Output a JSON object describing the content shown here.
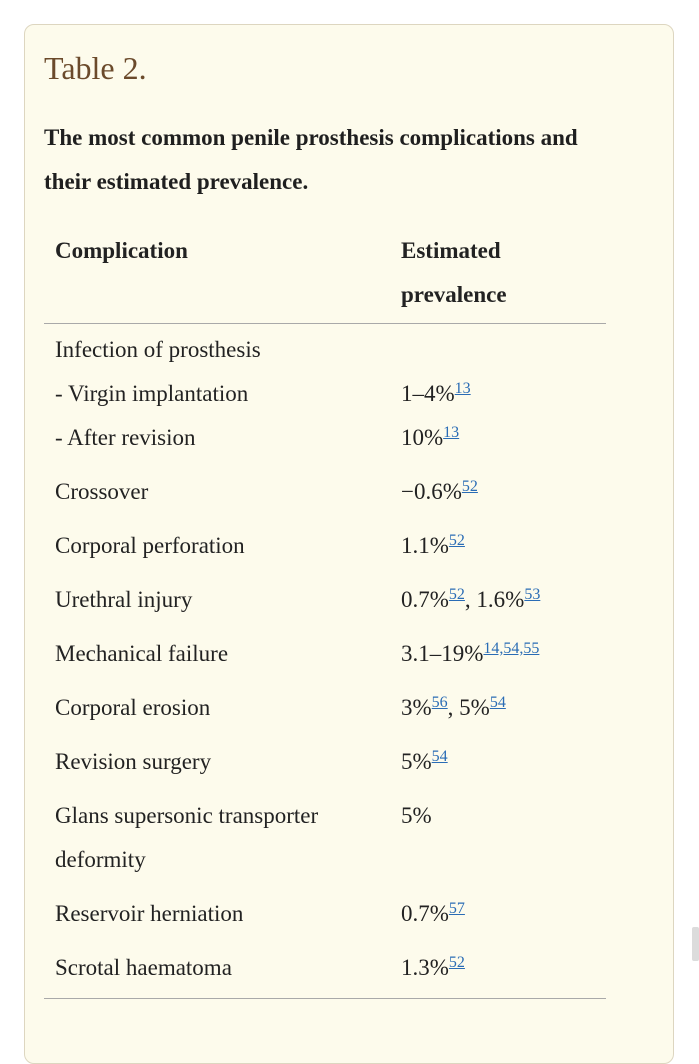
{
  "table": {
    "label": "Table 2.",
    "caption": "The most common penile prosthesis complications and their estimated prevalence.",
    "headers": {
      "complication": "Complication",
      "prevalence": "Estimated prevalence"
    },
    "infection": {
      "title": "Infection of prosthesis",
      "sub_virgin": "- Virgin implantation",
      "sub_revision": "- After revision",
      "virgin_value": "1–4%",
      "virgin_ref": "13",
      "revision_value": "10%",
      "revision_ref": "13"
    },
    "rows": [
      {
        "label": "Crossover",
        "value": "−0.6%",
        "ref": "52"
      },
      {
        "label": "Corporal perforation",
        "value": "1.1%",
        "ref": "52"
      },
      {
        "label": "Urethral injury",
        "value": "0.7%",
        "ref": "52",
        "value2": ", 1.6%",
        "ref2": "53"
      },
      {
        "label": "Mechanical failure",
        "value": "3.1–19%",
        "ref": "14,54,55"
      },
      {
        "label": "Corporal erosion",
        "value": "3%",
        "ref": "56",
        "value2": ", 5%",
        "ref2": "54"
      },
      {
        "label": "Revision surgery",
        "value": "5%",
        "ref": "54"
      },
      {
        "label": "Glans supersonic transporter deformity",
        "value": "5%"
      },
      {
        "label": "Reservoir herniation",
        "value": "0.7%",
        "ref": "57"
      },
      {
        "label": "Scrotal haematoma",
        "value": "1.3%",
        "ref": "52"
      }
    ]
  }
}
